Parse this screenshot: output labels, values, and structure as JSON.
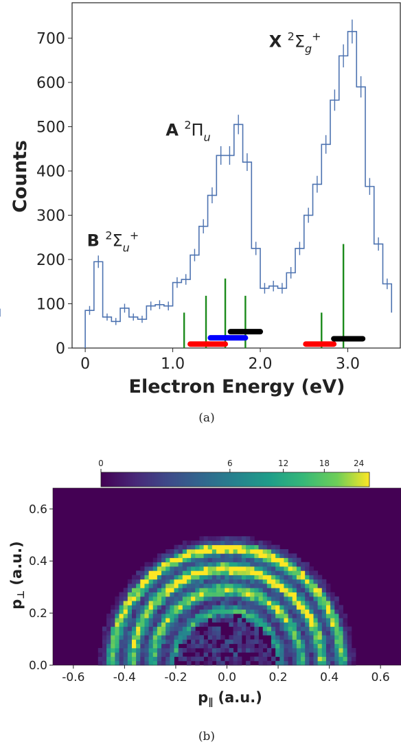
{
  "chart_data": [
    {
      "type": "histogram",
      "xlabel": "Electron Energy (eV)",
      "ylabel": "Counts",
      "xlim": [
        -0.15,
        3.6
      ],
      "ylim": [
        0,
        780
      ],
      "xticks": [
        "0",
        "1.0",
        "2.0",
        "3.0"
      ],
      "yticks": [
        "0",
        "100",
        "200",
        "300",
        "400",
        "500",
        "600",
        "700"
      ],
      "caption": "(a)",
      "line_color": "#4c72b0",
      "bin_edges": [
        0.0,
        0.1,
        0.2,
        0.3,
        0.4,
        0.5,
        0.6,
        0.7,
        0.8,
        0.9,
        1.0,
        1.1,
        1.2,
        1.3,
        1.4,
        1.5,
        1.6,
        1.7,
        1.8,
        1.9,
        2.0,
        2.1,
        2.2,
        2.3,
        2.4,
        2.5,
        2.6,
        2.7,
        2.8,
        2.9,
        3.0,
        3.1,
        3.2,
        3.3,
        3.4,
        3.5
      ],
      "counts": [
        85,
        195,
        70,
        60,
        90,
        70,
        65,
        95,
        98,
        95,
        148,
        155,
        210,
        275,
        345,
        435,
        435,
        505,
        420,
        225,
        135,
        140,
        135,
        170,
        225,
        300,
        370,
        460,
        560,
        660,
        715,
        590,
        365,
        235,
        145,
        80
      ],
      "error": [
        10,
        14,
        8,
        8,
        10,
        8,
        8,
        10,
        10,
        10,
        12,
        12,
        14,
        16,
        18,
        21,
        21,
        22,
        20,
        15,
        12,
        12,
        12,
        13,
        15,
        17,
        19,
        21,
        24,
        26,
        27,
        24,
        19,
        15,
        12,
        9
      ],
      "annotations": [
        {
          "bold": "B",
          "sup": "2",
          "symbol": "Σ",
          "sub": "u",
          "subsup": "+",
          "x": 0.02,
          "y": 230
        },
        {
          "bold": "A",
          "sup": "2",
          "symbol": "Π",
          "sub": "u",
          "subsup": "",
          "x": 0.92,
          "y": 480
        },
        {
          "bold": "X",
          "sup": "2",
          "symbol": "Σ",
          "sub": "g",
          "subsup": "+",
          "x": 2.1,
          "y": 680
        }
      ],
      "green_lines": [
        {
          "x": 1.13,
          "y": 80
        },
        {
          "x": 1.38,
          "y": 118
        },
        {
          "x": 1.6,
          "y": 157
        },
        {
          "x": 1.83,
          "y": 118
        },
        {
          "x": 2.7,
          "y": 80
        },
        {
          "x": 2.95,
          "y": 235
        }
      ],
      "bars": [
        {
          "color": "red",
          "x0": 1.2,
          "x1": 1.6,
          "y": 9
        },
        {
          "color": "blue",
          "x0": 1.43,
          "x1": 1.83,
          "y": 23
        },
        {
          "color": "black",
          "x0": 1.66,
          "x1": 2.0,
          "y": 37
        },
        {
          "color": "red",
          "x0": 2.52,
          "x1": 2.84,
          "y": 9
        },
        {
          "color": "black",
          "x0": 2.84,
          "x1": 3.17,
          "y": 21
        }
      ]
    },
    {
      "type": "heatmap",
      "xlabel": "p",
      "xlabel_sub": "∥",
      "xlabel_unit": "(a.u.)",
      "ylabel": "p",
      "ylabel_sub": "⊥",
      "ylabel_unit": "(a.u.)",
      "xlim": [
        -0.68,
        0.68
      ],
      "ylim": [
        0,
        0.68
      ],
      "xticks": [
        "-0.6",
        "-0.4",
        "-0.2",
        "0.0",
        "0.2",
        "0.4",
        "0.6"
      ],
      "yticks": [
        "0.0",
        "0.2",
        "0.4",
        "0.6"
      ],
      "colorbar_ticks": [
        "0",
        "6",
        "12",
        "18",
        "24"
      ],
      "colorbar_scale": "sqrt",
      "colormap": "viridis",
      "rings_p": [
        0.21,
        0.29,
        0.37,
        0.45
      ],
      "max_p": 0.5,
      "caption": "(b)"
    }
  ]
}
